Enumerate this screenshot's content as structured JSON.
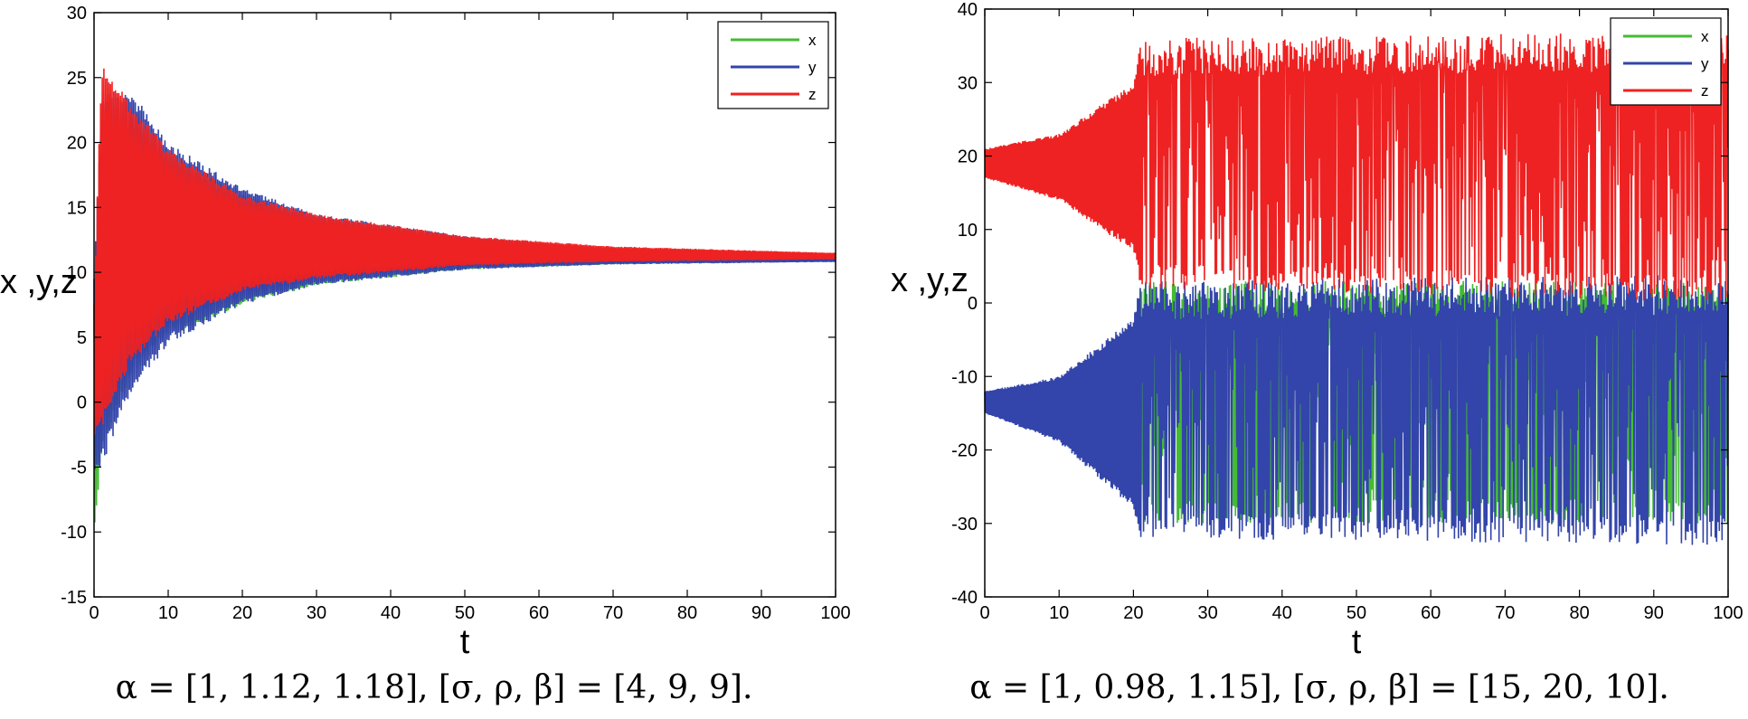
{
  "chart_data": [
    {
      "type": "line",
      "xlabel": "t",
      "ylabel": "x ,y,z",
      "xlim": [
        0,
        100
      ],
      "ylim": [
        -15,
        30
      ],
      "xticks": [
        0,
        10,
        20,
        30,
        40,
        50,
        60,
        70,
        80,
        90,
        100
      ],
      "yticks": [
        -15,
        -10,
        -5,
        0,
        5,
        10,
        15,
        20,
        25,
        30
      ],
      "legend": {
        "position": "top-right",
        "entries": [
          "x",
          "y",
          "z"
        ]
      },
      "grid": false,
      "series": [
        {
          "name": "x",
          "color": "#44bb33",
          "behavior": "damped oscillation converging to equilibrium",
          "envelope_t": [
            0,
            1,
            5,
            10,
            20,
            30,
            50,
            70,
            100
          ],
          "envelope_upper": [
            8,
            20,
            22,
            19,
            16,
            14,
            12.5,
            11.8,
            11.2
          ],
          "envelope_lower": [
            -11,
            -4,
            2,
            5,
            7.5,
            9,
            10.2,
            10.6,
            10.9
          ]
        },
        {
          "name": "y",
          "color": "#3344aa",
          "behavior": "damped oscillation converging to equilibrium",
          "envelope_t": [
            0,
            1,
            5,
            10,
            20,
            30,
            50,
            70,
            100
          ],
          "envelope_upper": [
            10,
            24,
            24,
            20,
            16.5,
            14.5,
            12.8,
            11.8,
            11.2
          ],
          "envelope_lower": [
            -6,
            -5,
            0.5,
            4.5,
            7.5,
            9,
            10.2,
            10.6,
            10.8
          ]
        },
        {
          "name": "z",
          "color": "#ee2222",
          "behavior": "damped oscillation converging to equilibrium",
          "envelope_t": [
            0,
            1,
            5,
            10,
            20,
            30,
            50,
            70,
            100
          ],
          "envelope_upper": [
            8,
            26,
            23,
            19.5,
            16,
            14.5,
            12.8,
            12,
            11.5
          ],
          "envelope_lower": [
            -3,
            -2,
            3,
            6,
            8.5,
            9.5,
            10.5,
            10.8,
            11
          ]
        }
      ],
      "caption": "α = [1, 1.12, 1.18], [σ, ρ, β] = [4, 9, 9]."
    },
    {
      "type": "line",
      "xlabel": "t",
      "ylabel": "x ,y,z",
      "xlim": [
        0,
        100
      ],
      "ylim": [
        -40,
        40
      ],
      "xticks": [
        0,
        10,
        20,
        30,
        40,
        50,
        60,
        70,
        80,
        90,
        100
      ],
      "yticks": [
        -40,
        -30,
        -20,
        -10,
        0,
        10,
        20,
        30,
        40
      ],
      "legend": {
        "position": "top-right",
        "entries": [
          "x",
          "y",
          "z"
        ]
      },
      "grid": false,
      "series": [
        {
          "name": "x",
          "color": "#44bb33",
          "behavior": "growing oscillation then chaotic switching",
          "envelope_t": [
            0,
            10,
            20,
            21,
            100
          ],
          "envelope_upper": [
            -13,
            -11,
            -5,
            3,
            3
          ],
          "envelope_lower": [
            -15,
            -18,
            -24,
            -30,
            -30
          ]
        },
        {
          "name": "y",
          "color": "#3344aa",
          "behavior": "growing oscillation then chaotic switching",
          "envelope_t": [
            0,
            10,
            20,
            21,
            100
          ],
          "envelope_upper": [
            -12,
            -10,
            -2,
            3,
            4
          ],
          "envelope_lower": [
            -15,
            -19,
            -28,
            -32,
            -33
          ]
        },
        {
          "name": "z",
          "color": "#ee2222",
          "behavior": "growing oscillation then chaotic",
          "envelope_t": [
            0,
            10,
            20,
            21,
            100
          ],
          "envelope_upper": [
            21,
            23,
            30,
            36,
            37
          ],
          "envelope_lower": [
            17,
            14,
            7,
            2,
            0
          ]
        }
      ],
      "caption": "α = [1, 0.98, 1.15], [σ, ρ, β] = [15, 20, 10]."
    }
  ]
}
